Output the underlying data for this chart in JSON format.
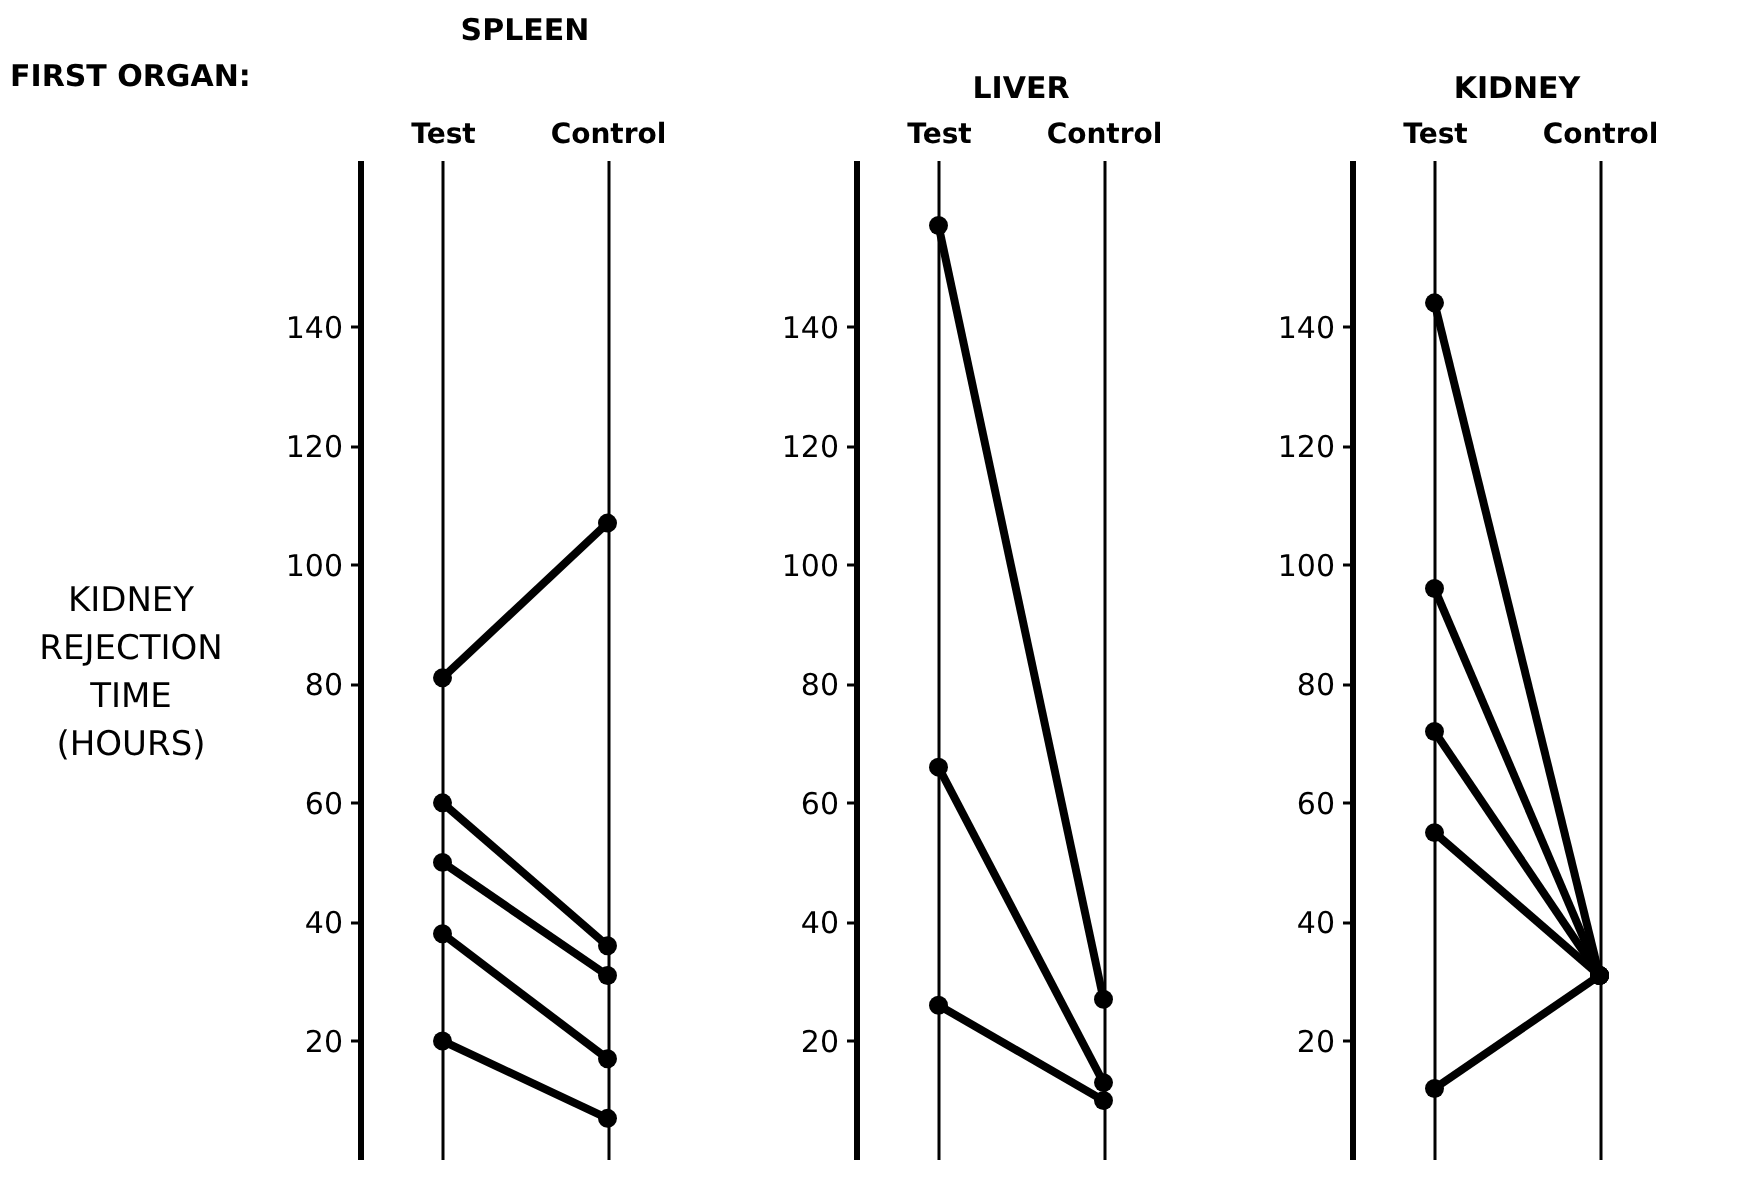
{
  "chart_data": [
    {
      "type": "line",
      "title": "SPLEEN",
      "ylabel": "KIDNEY REJECTION TIME (HOURS)",
      "annotations": [
        "FIRST ORGAN:"
      ],
      "categories": [
        "Test",
        "Control"
      ],
      "ylim": [
        0,
        168
      ],
      "yticks": [
        20,
        40,
        60,
        80,
        100,
        120,
        140
      ],
      "grid": "x",
      "marker": "circle",
      "line_style": "solid",
      "legend": false,
      "series": [
        {
          "color": "#000000",
          "values": [
            81,
            107
          ]
        },
        {
          "color": "#000000",
          "values": [
            60,
            36
          ]
        },
        {
          "color": "#000000",
          "values": [
            50,
            31
          ]
        },
        {
          "color": "#000000",
          "values": [
            38,
            17
          ]
        },
        {
          "color": "#000000",
          "values": [
            20,
            7
          ]
        }
      ]
    },
    {
      "type": "line",
      "title": "LIVER",
      "categories": [
        "Test",
        "Control"
      ],
      "ylim": [
        0,
        168
      ],
      "yticks": [
        20,
        40,
        60,
        80,
        100,
        120,
        140
      ],
      "grid": "x",
      "marker": "circle",
      "line_style": "solid",
      "legend": false,
      "series": [
        {
          "color": "#000000",
          "values": [
            157,
            27
          ]
        },
        {
          "color": "#000000",
          "values": [
            66,
            13
          ]
        },
        {
          "color": "#000000",
          "values": [
            26,
            10
          ]
        }
      ]
    },
    {
      "type": "line",
      "title": "KIDNEY",
      "categories": [
        "Test",
        "Control"
      ],
      "ylim": [
        0,
        168
      ],
      "yticks": [
        20,
        40,
        60,
        80,
        100,
        120,
        140
      ],
      "grid": "x",
      "marker": "circle",
      "line_style": "solid",
      "legend": false,
      "series": [
        {
          "color": "#000000",
          "values": [
            144,
            31
          ]
        },
        {
          "color": "#000000",
          "values": [
            96,
            31
          ]
        },
        {
          "color": "#000000",
          "values": [
            72,
            31
          ]
        },
        {
          "color": "#000000",
          "values": [
            55,
            31
          ]
        },
        {
          "color": "#000000",
          "values": [
            12,
            31
          ]
        }
      ]
    }
  ]
}
